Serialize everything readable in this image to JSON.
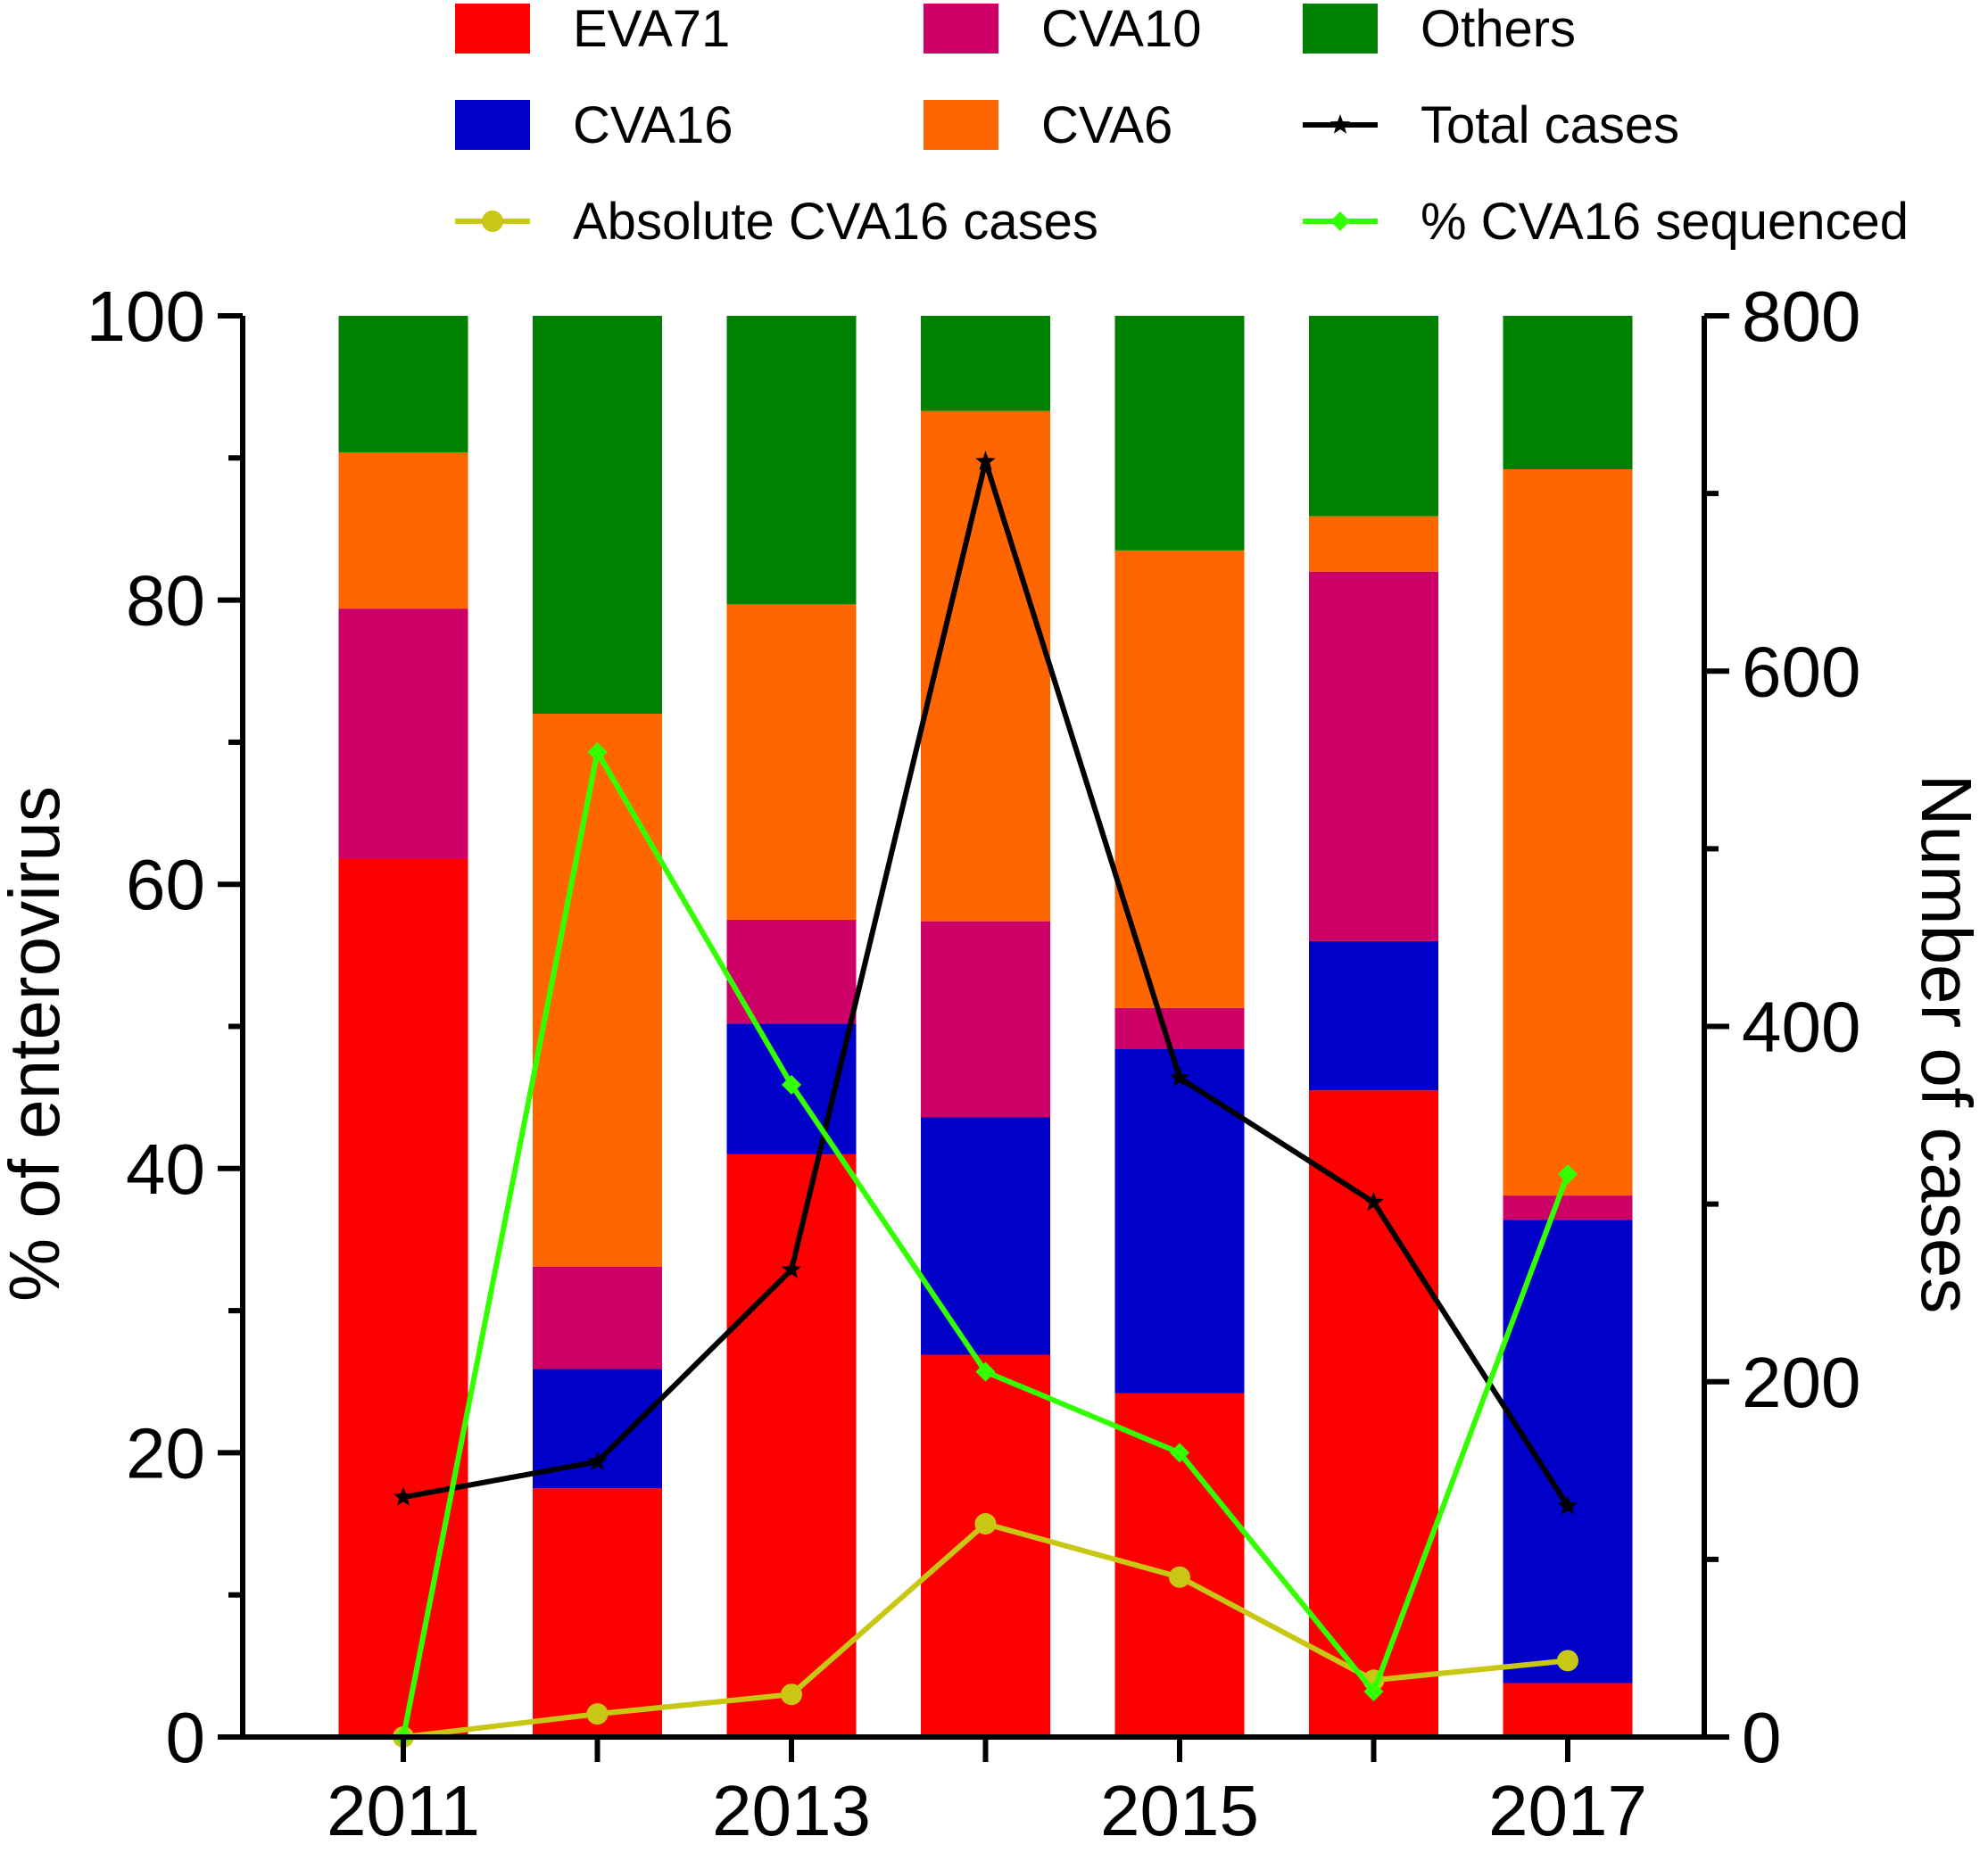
{
  "chart_data": {
    "type": "bar",
    "stacked": true,
    "title": "",
    "xlabel": "",
    "ylabel": "% of enterovirus",
    "y2label": "Number of cases",
    "ylim": [
      0,
      100
    ],
    "y2lim": [
      0,
      800
    ],
    "yticks": [
      0,
      20,
      40,
      60,
      80,
      100
    ],
    "y2ticks": [
      0,
      200,
      400,
      600,
      800
    ],
    "categories": [
      "2011",
      "2012",
      "2013",
      "2014",
      "2015",
      "2016",
      "2017"
    ],
    "xtick_labels": [
      "2011",
      "2013",
      "2015",
      "2017"
    ],
    "series": [
      {
        "name": "EVA71",
        "color": "#ff0000",
        "values": [
          61.8,
          17.5,
          41.0,
          26.9,
          24.2,
          45.5,
          3.8
        ]
      },
      {
        "name": "CVA16",
        "color": "#0000c8",
        "values": [
          0,
          8.4,
          9.2,
          16.7,
          24.2,
          10.5,
          32.6
        ]
      },
      {
        "name": "CVA10",
        "color": "#cc0066",
        "values": [
          17.6,
          7.2,
          7.3,
          13.8,
          2.9,
          26.0,
          1.7
        ]
      },
      {
        "name": "CVA6",
        "color": "#ff6600",
        "values": [
          11.0,
          38.9,
          22.2,
          35.9,
          32.2,
          3.9,
          51.1
        ]
      },
      {
        "name": "Others",
        "color": "#008000",
        "values": [
          9.6,
          28.0,
          20.3,
          6.7,
          16.5,
          14.1,
          10.8
        ]
      }
    ],
    "lines": [
      {
        "name": "Total cases",
        "color": "#000000",
        "axis": "right",
        "marker": "star",
        "values": [
          135,
          155,
          263,
          718,
          371,
          301,
          130
        ]
      },
      {
        "name": "Absolute CVA16 cases",
        "color": "#c8c814",
        "axis": "right",
        "marker": "circle",
        "values": [
          0,
          13,
          24,
          120,
          90,
          32,
          43
        ]
      },
      {
        "name": "% CVA16 sequenced",
        "color": "#33ff00",
        "axis": "left",
        "marker": "diamond",
        "values": [
          0,
          69.3,
          45.9,
          25.7,
          20.0,
          3.2,
          39.6
        ]
      }
    ],
    "legend_position": "top"
  }
}
